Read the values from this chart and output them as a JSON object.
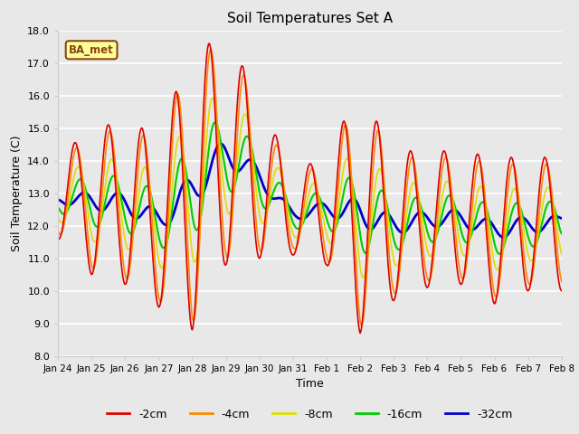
{
  "title": "Soil Temperatures Set A",
  "xlabel": "Time",
  "ylabel": "Soil Temperature (C)",
  "ylim": [
    8.0,
    18.0
  ],
  "yticks": [
    8.0,
    9.0,
    10.0,
    11.0,
    12.0,
    13.0,
    14.0,
    15.0,
    16.0,
    17.0,
    18.0
  ],
  "bg_color": "#e8e8e8",
  "plot_bg_color": "#e8e8e8",
  "grid_color": "#ffffff",
  "annotation_text": "BA_met",
  "annotation_bg": "#ffff99",
  "annotation_border": "#8b4513",
  "series_colors": {
    "-2cm": "#dd0000",
    "-4cm": "#ff8800",
    "-8cm": "#dddd00",
    "-16cm": "#00cc00",
    "-32cm": "#0000cc"
  },
  "series_linewidths": {
    "-2cm": 1.2,
    "-4cm": 1.2,
    "-8cm": 1.2,
    "-16cm": 1.5,
    "-32cm": 2.0
  },
  "xtick_labels": [
    "Jan 24",
    "Jan 25",
    "Jan 26",
    "Jan 27",
    "Jan 28",
    "Jan 29",
    "Jan 30",
    "Jan 31",
    "Feb 1",
    "Feb 2",
    "Feb 3",
    "Feb 4",
    "Feb 5",
    "Feb 6",
    "Feb 7",
    "Feb 8"
  ],
  "num_days": 15,
  "points_per_day": 48
}
